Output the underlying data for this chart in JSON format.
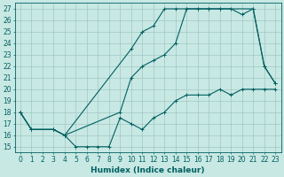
{
  "xlabel": "Humidex (Indice chaleur)",
  "xlim": [
    -0.5,
    23.5
  ],
  "ylim": [
    14.5,
    27.5
  ],
  "xticks": [
    0,
    1,
    2,
    3,
    4,
    5,
    6,
    7,
    8,
    9,
    10,
    11,
    12,
    13,
    14,
    15,
    16,
    17,
    18,
    19,
    20,
    21,
    22,
    23
  ],
  "yticks": [
    15,
    16,
    17,
    18,
    19,
    20,
    21,
    22,
    23,
    24,
    25,
    26,
    27
  ],
  "bg_color": "#c8e8e4",
  "grid_color": "#a0c8c4",
  "line_color": "#006060",
  "series1_x": [
    0,
    1,
    3,
    4,
    5,
    6,
    7,
    8,
    9,
    10,
    11,
    12,
    13,
    14,
    15,
    16,
    17,
    18,
    19,
    20,
    21,
    22,
    23
  ],
  "series1_y": [
    18,
    16.5,
    16.5,
    16,
    15,
    15,
    15,
    15,
    17.5,
    17,
    16.5,
    17.5,
    18,
    19,
    19.5,
    19.5,
    19.5,
    20,
    19.5,
    20,
    20,
    20,
    20
  ],
  "series2_x": [
    0,
    1,
    3,
    4,
    10,
    11,
    12,
    13,
    14,
    15,
    16,
    17,
    18,
    21,
    22,
    23
  ],
  "series2_y": [
    18,
    16.5,
    16.5,
    16,
    23.5,
    25,
    25.5,
    27,
    27,
    27,
    27,
    27,
    27,
    27,
    22,
    20.5
  ],
  "series3_x": [
    0,
    1,
    3,
    4,
    9,
    10,
    11,
    12,
    13,
    14,
    15,
    16,
    17,
    18,
    19,
    20,
    21,
    22,
    23
  ],
  "series3_y": [
    18,
    16.5,
    16.5,
    16,
    18,
    21,
    22,
    22.5,
    23,
    24,
    27,
    27,
    27,
    27,
    27,
    26.5,
    27,
    22,
    20.5
  ],
  "font_size": 6.5,
  "tick_font_size": 5.5
}
